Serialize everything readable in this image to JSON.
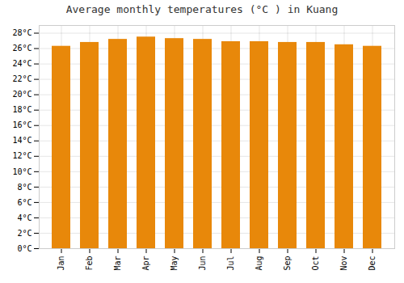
{
  "chart_data": {
    "type": "bar",
    "title": "Average monthly temperatures (°C ) in Kuang",
    "categories": [
      "Jan",
      "Feb",
      "Mar",
      "Apr",
      "May",
      "Jun",
      "Jul",
      "Aug",
      "Sep",
      "Oct",
      "Nov",
      "Dec"
    ],
    "values": [
      26.3,
      26.8,
      27.2,
      27.5,
      27.3,
      27.2,
      26.9,
      26.9,
      26.8,
      26.8,
      26.5,
      26.3
    ],
    "color": "#E8880A",
    "ylim": [
      0,
      29
    ],
    "yticks": [
      {
        "value": 0,
        "label": "0°C"
      },
      {
        "value": 2,
        "label": "2°C"
      },
      {
        "value": 4,
        "label": "4°C"
      },
      {
        "value": 6,
        "label": "6°C"
      },
      {
        "value": 8,
        "label": "8°C"
      },
      {
        "value": 10,
        "label": "10°C"
      },
      {
        "value": 12,
        "label": "12°C"
      },
      {
        "value": 14,
        "label": "14°C"
      },
      {
        "value": 16,
        "label": "16°C"
      },
      {
        "value": 18,
        "label": "18°C"
      },
      {
        "value": 20,
        "label": "20°C"
      },
      {
        "value": 22,
        "label": "22°C"
      },
      {
        "value": 24,
        "label": "24°C"
      },
      {
        "value": 26,
        "label": "26°C"
      },
      {
        "value": 28,
        "label": "28°C"
      }
    ],
    "grid": true
  }
}
